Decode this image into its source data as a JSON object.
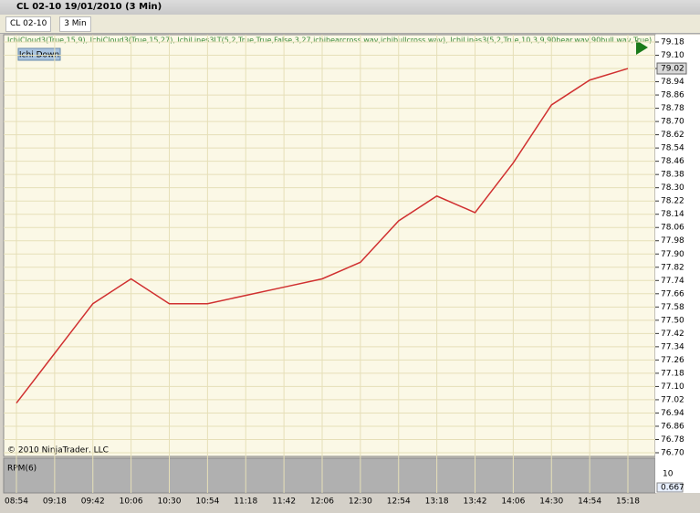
{
  "window": {
    "title": "CL 02-10  19/01/2010 (3 Min)"
  },
  "toolbar": {
    "instrument": "CL 02-10",
    "interval": "3 Min"
  },
  "indicators": "IchiCloud3(True,15,9), IchiCloud3(True,15,27), IchiLines3LT(5,2,True,True,False,3,27,ichibearcross.wav,ichibullcross.wav), IchiLines3(5,2,True,10,3,9,90bear.wav,90bull.wav,True)",
  "badge": "Ichi Down",
  "copyright": "© 2010 NinjaTrader, LLC",
  "lower_panel": {
    "label": "RPM(6)",
    "tick": "10",
    "last": "0.667"
  },
  "price_axis": {
    "ylim": [
      76.7,
      79.18
    ],
    "current": 79.02,
    "ticks": [
      79.18,
      {
        "value": 79.1,
        "label": "79.10"
      },
      79.02,
      78.94,
      78.86,
      78.78,
      {
        "value": 78.7,
        "label": "78.70"
      },
      78.62,
      78.54,
      78.46,
      78.38,
      {
        "value": 78.3,
        "label": "78.30"
      },
      78.22,
      78.14,
      78.06,
      77.98,
      {
        "value": 77.9,
        "label": "77.90"
      },
      77.82,
      77.74,
      77.66,
      77.58,
      {
        "value": 77.5,
        "label": "77.50"
      },
      77.42,
      77.34,
      77.26,
      77.18,
      {
        "value": 77.1,
        "label": "77.10"
      },
      77.02,
      76.94,
      76.86,
      76.78,
      {
        "value": 76.7,
        "label": "76.70"
      }
    ]
  },
  "time_axis": {
    "labels": [
      "08:54",
      "09:18",
      "09:42",
      "10:06",
      "10:30",
      "10:54",
      "11:18",
      "11:42",
      "12:06",
      "12:30",
      "12:54",
      "13:18",
      "13:42",
      "14:06",
      "14:30",
      "14:54",
      "15:18"
    ]
  },
  "price": {
    "color": "#d03030",
    "values": [
      77.0,
      77.3,
      77.6,
      77.75,
      77.6,
      77.6,
      77.65,
      77.7,
      77.75,
      77.85,
      78.1,
      78.25,
      78.15,
      78.45,
      78.8,
      78.95,
      79.02
    ]
  }
}
